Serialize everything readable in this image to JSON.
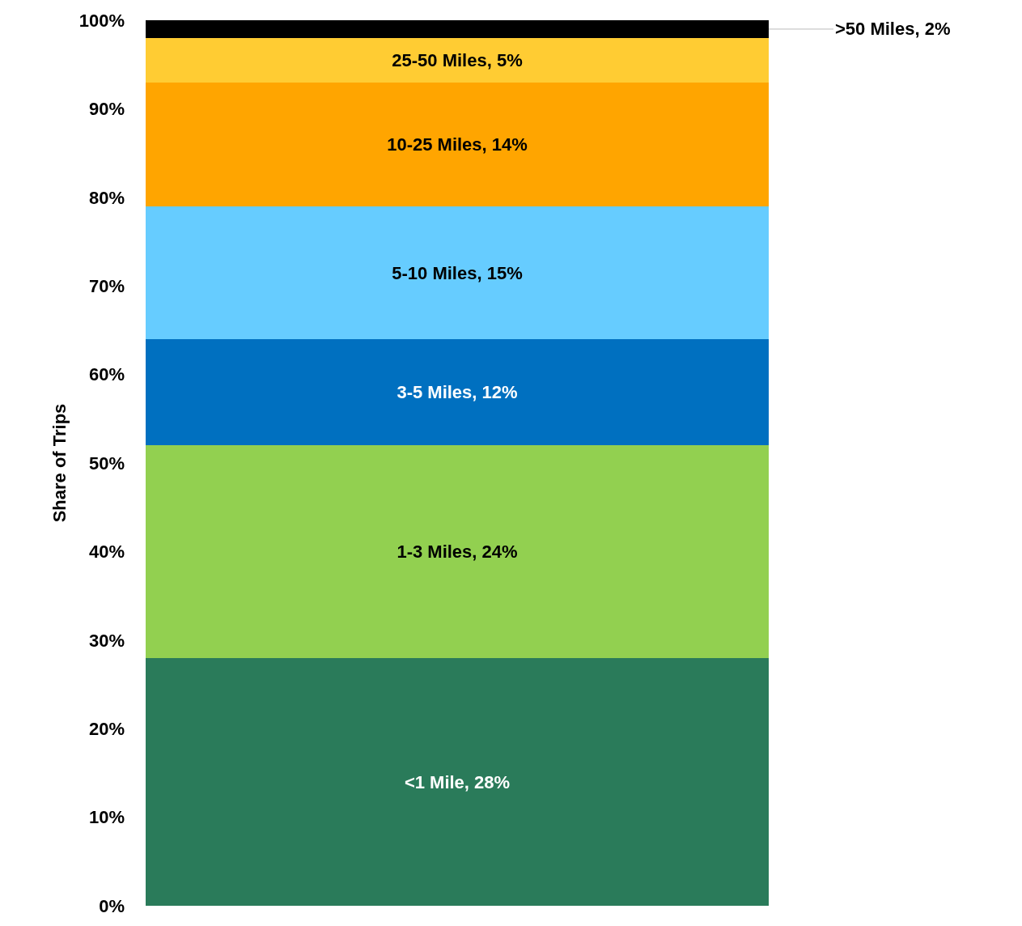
{
  "chart_data": {
    "type": "bar",
    "stacked": true,
    "ylabel": "Share of Trips",
    "categories": [
      null
    ],
    "series": [
      {
        "color": "#2a7b5a",
        "values": [
          28
        ],
        "value_labels": [
          "<1 Mile, 28%"
        ]
      },
      {
        "color": "#92d050",
        "values": [
          24
        ],
        "value_labels": [
          "1-3 Miles, 24%"
        ]
      },
      {
        "color": "#0070c0",
        "values": [
          12
        ],
        "value_labels": [
          "3-5 Miles, 12%"
        ]
      },
      {
        "color": "#66ccff",
        "values": [
          15
        ],
        "value_labels": [
          "5-10 Miles, 15%"
        ]
      },
      {
        "color": "#ffa500",
        "values": [
          14
        ],
        "value_labels": [
          "10-25 Miles, 14%"
        ]
      },
      {
        "color": "#ffcc33",
        "values": [
          5
        ],
        "value_labels": [
          "25-50 Miles, 5%"
        ]
      },
      {
        "color": "#000000",
        "values": [
          2
        ],
        "value_labels": [
          ">50 Miles, 2%"
        ]
      }
    ],
    "ylim": [
      0,
      100
    ],
    "yticks": [
      {
        "value": 0,
        "label": "0%"
      },
      {
        "value": 10,
        "label": "10%"
      },
      {
        "value": 20,
        "label": "20%"
      },
      {
        "value": 30,
        "label": "30%"
      },
      {
        "value": 40,
        "label": "40%"
      },
      {
        "value": 50,
        "label": "50%"
      },
      {
        "value": 60,
        "label": "60%"
      },
      {
        "value": 70,
        "label": "70%"
      },
      {
        "value": 80,
        "label": "80%"
      },
      {
        "value": 90,
        "label": "90%"
      },
      {
        "value": 100,
        "label": "100%"
      }
    ],
    "tick_labels": "y"
  }
}
